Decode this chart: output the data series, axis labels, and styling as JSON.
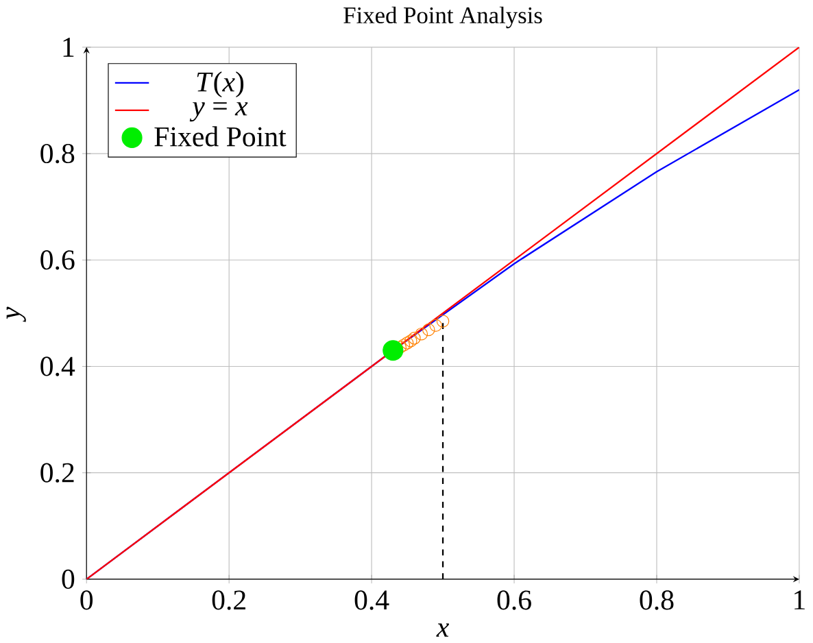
{
  "chart_data": {
    "type": "line",
    "title": "Fixed Point Analysis",
    "xlabel": "x",
    "ylabel": "y",
    "xlim": [
      0,
      1
    ],
    "ylim": [
      0,
      1
    ],
    "xticks": [
      0,
      0.2,
      0.4,
      0.6,
      0.8,
      1
    ],
    "yticks": [
      0,
      0.2,
      0.4,
      0.6,
      0.8,
      1
    ],
    "grid": true,
    "legend": "top left",
    "series": [
      {
        "name": "*T*(*x*)",
        "color": "#0000ff",
        "x": [
          0,
          0.2,
          0.43,
          0.6,
          0.8,
          1
        ],
        "values": [
          0,
          0.2,
          0.43,
          0.593,
          0.766,
          0.92
        ]
      },
      {
        "name": "*y* = *x*",
        "color": "#ff0000",
        "x": [
          0,
          1
        ],
        "values": [
          0,
          1
        ]
      },
      {
        "type": "line",
        "color": "#000000",
        "line_style": "dashed",
        "x": [
          0.5,
          0.5
        ],
        "values": [
          0,
          0.485
        ]
      },
      {
        "type": "scatter",
        "color": "#ff8000",
        "marker": "circle",
        "x": [
          0.5,
          0.49,
          0.48,
          0.47,
          0.46,
          0.455,
          0.45,
          0.445,
          0.44
        ],
        "values": [
          0.485,
          0.477,
          0.469,
          0.461,
          0.453,
          0.448,
          0.444,
          0.44,
          0.436
        ]
      },
      {
        "name": "Fixed Point",
        "type": "scatter",
        "color": "#00ee00",
        "marker": "circle",
        "x": [
          0.43
        ],
        "values": [
          0.43
        ]
      }
    ]
  }
}
